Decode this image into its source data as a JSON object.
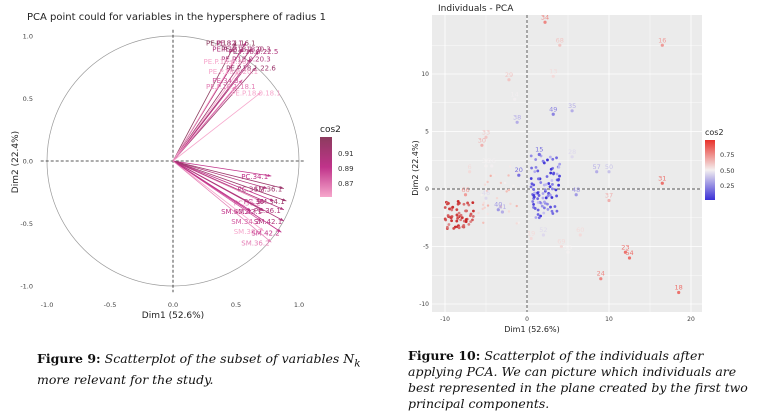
{
  "figures": [
    {
      "title": "PCA point could for variables in the hypersphere of radius 1",
      "caption_label": "Figure 9:",
      "caption_text": "Scatterplot of the subset of variables N",
      "caption_sub": "k",
      "caption_rest": " more relevant for the study."
    },
    {
      "title": "Individuals - PCA",
      "caption_label": "Figure 10:",
      "caption_text": "Scatterplot of the individuals after applying PCA. We can picture which individuals are best represented in the plane created by the first two principal components."
    }
  ],
  "colors": {
    "cos2_high": "#8c3b5e",
    "cos2_mid": "#c0338a",
    "cos2_low": "#f6a7cc",
    "ind_high": "#e8312a",
    "ind_low": "#3a2fd6",
    "ind_mid": "#f2f2f2"
  },
  "chart_data": [
    {
      "type": "scatter",
      "title": "PCA point could for variables in the hypersphere of radius 1",
      "xlabel": "Dim1 (52.6%)",
      "ylabel": "Dim2 (22.4%)",
      "xlim": [
        -1.0,
        1.0
      ],
      "ylim": [
        -1.0,
        1.0
      ],
      "xticks": [
        "-1.0",
        "-0.5",
        "0.0",
        "0.5",
        "1.0"
      ],
      "yticks": [
        "-1.0",
        "-0.5",
        "0.0",
        "0.5",
        "1.0"
      ],
      "legend": {
        "title": "cos2",
        "labels": [
          "0.91",
          "0.89",
          "0.87"
        ],
        "placement": "right"
      },
      "grid": false,
      "points": [
        {
          "label": "PE.P.18.1.16.1",
          "x": 0.5,
          "y": 0.95,
          "cos2": 0.92
        },
        {
          "label": "PE.32.1",
          "x": 0.58,
          "y": 0.95,
          "cos2": 0.9
        },
        {
          "label": "PE.P.18.1.18.0",
          "x": 0.55,
          "y": 0.9,
          "cos2": 0.9
        },
        {
          "label": "PE.P.18.1.20.3",
          "x": 0.62,
          "y": 0.9,
          "cos2": 0.91
        },
        {
          "label": "PE.P.18.0.22.5",
          "x": 0.68,
          "y": 0.88,
          "cos2": 0.9
        },
        {
          "label": "PE.P.18.0.20.3",
          "x": 0.62,
          "y": 0.82,
          "cos2": 0.9
        },
        {
          "label": "PE.P.16.0.20",
          "x": 0.48,
          "y": 0.8,
          "cos2": 0.86
        },
        {
          "label": "PE.P.18.1.22.6",
          "x": 0.66,
          "y": 0.75,
          "cos2": 0.91
        },
        {
          "label": "PE.P.18.0.20.1",
          "x": 0.52,
          "y": 0.72,
          "cos2": 0.86
        },
        {
          "label": "PE.34.3",
          "x": 0.55,
          "y": 0.65,
          "cos2": 0.88
        },
        {
          "label": "PE.P.18.1.18.1",
          "x": 0.5,
          "y": 0.6,
          "cos2": 0.87
        },
        {
          "label": "PE.P.18.0.18.1",
          "x": 0.7,
          "y": 0.55,
          "cos2": 0.86
        },
        {
          "label": "PC.34.1",
          "x": 0.78,
          "y": -0.12,
          "cos2": 0.89
        },
        {
          "label": "PC.34.2",
          "x": 0.75,
          "y": -0.22,
          "cos2": 0.9
        },
        {
          "label": "SM.36.1",
          "x": 0.88,
          "y": -0.22,
          "cos2": 0.91
        },
        {
          "label": "PC.36.2",
          "x": 0.72,
          "y": -0.33,
          "cos2": 0.87
        },
        {
          "label": "PC.30",
          "x": 0.8,
          "y": -0.32,
          "cos2": 0.89
        },
        {
          "label": "SM.34.1",
          "x": 0.9,
          "y": -0.32,
          "cos2": 0.91
        },
        {
          "label": "SM.40.2",
          "x": 0.62,
          "y": -0.4,
          "cos2": 0.89
        },
        {
          "label": "SM.42.1",
          "x": 0.72,
          "y": -0.4,
          "cos2": 0.9
        },
        {
          "label": "PC.36.1",
          "x": 0.88,
          "y": -0.39,
          "cos2": 0.9
        },
        {
          "label": "SM.34.2",
          "x": 0.7,
          "y": -0.48,
          "cos2": 0.88
        },
        {
          "label": "SM.42.1",
          "x": 0.88,
          "y": -0.48,
          "cos2": 0.9
        },
        {
          "label": "SM.38.2",
          "x": 0.72,
          "y": -0.56,
          "cos2": 0.86
        },
        {
          "label": "SM.42.2",
          "x": 0.86,
          "y": -0.57,
          "cos2": 0.89
        },
        {
          "label": "SM.36.2",
          "x": 0.78,
          "y": -0.65,
          "cos2": 0.87
        }
      ]
    },
    {
      "type": "scatter",
      "title": "Individuals - PCA",
      "xlabel": "Dim1 (52.6%)",
      "ylabel": "Dim2 (22.4%)",
      "xlim": [
        -10,
        20
      ],
      "ylim": [
        -10,
        10
      ],
      "xticks": [
        "-10",
        "0",
        "10",
        "20"
      ],
      "yticks": [
        "-10",
        "-5",
        "0",
        "5",
        "10"
      ],
      "legend": {
        "title": "cos2",
        "labels": [
          "0.75",
          "0.50",
          "0.25"
        ],
        "placement": "right"
      },
      "grid": true,
      "labeled_points": [
        {
          "label": "34",
          "x": 2.2,
          "y": 14.5,
          "cos2": 0.75
        },
        {
          "label": "68",
          "x": 4.0,
          "y": 12.5,
          "cos2": 0.6
        },
        {
          "label": "16",
          "x": 16.5,
          "y": 12.5,
          "cos2": 0.7
        },
        {
          "label": "13",
          "x": 3.2,
          "y": 9.8,
          "cos2": 0.55
        },
        {
          "label": "29",
          "x": -2.2,
          "y": 9.5,
          "cos2": 0.6
        },
        {
          "label": "14",
          "x": -1.5,
          "y": 7.8,
          "cos2": 0.45
        },
        {
          "label": "49",
          "x": 3.2,
          "y": 6.5,
          "cos2": 0.2
        },
        {
          "label": "35",
          "x": 5.5,
          "y": 6.8,
          "cos2": 0.3
        },
        {
          "label": "38",
          "x": -1.2,
          "y": 5.8,
          "cos2": 0.3
        },
        {
          "label": "33",
          "x": -5.0,
          "y": 4.5,
          "cos2": 0.6
        },
        {
          "label": "30",
          "x": -5.5,
          "y": 3.8,
          "cos2": 0.65
        },
        {
          "label": "15",
          "x": 1.5,
          "y": 3.0,
          "cos2": 0.15
        },
        {
          "label": "28",
          "x": 5.5,
          "y": 2.8,
          "cos2": 0.4
        },
        {
          "label": "36",
          "x": -5.0,
          "y": 2.0,
          "cos2": 0.5
        },
        {
          "label": "26",
          "x": -4.3,
          "y": 2.0,
          "cos2": 0.45
        },
        {
          "label": "6",
          "x": -7.0,
          "y": 1.5,
          "cos2": 0.55
        },
        {
          "label": "20",
          "x": -1.0,
          "y": 1.2,
          "cos2": 0.15
        },
        {
          "label": "57",
          "x": 8.5,
          "y": 1.5,
          "cos2": 0.3
        },
        {
          "label": "50",
          "x": 10.0,
          "y": 1.5,
          "cos2": 0.35
        },
        {
          "label": "31",
          "x": 16.5,
          "y": 0.5,
          "cos2": 0.8
        },
        {
          "label": "37",
          "x": 10.0,
          "y": -1.0,
          "cos2": 0.65
        },
        {
          "label": "66",
          "x": -7.5,
          "y": -0.5,
          "cos2": 0.7
        },
        {
          "label": "46",
          "x": -5.0,
          "y": -0.8,
          "cos2": 0.4
        },
        {
          "label": "41",
          "x": -3.0,
          "y": -2.0,
          "cos2": 0.3
        },
        {
          "label": "48",
          "x": 6.0,
          "y": -0.5,
          "cos2": 0.25
        },
        {
          "label": "40",
          "x": -3.5,
          "y": -1.8,
          "cos2": 0.25
        },
        {
          "label": "19",
          "x": 0.5,
          "y": -4.3,
          "cos2": 0.55
        },
        {
          "label": "52",
          "x": 2.0,
          "y": -4.0,
          "cos2": 0.4
        },
        {
          "label": "60",
          "x": 6.5,
          "y": -4.0,
          "cos2": 0.55
        },
        {
          "label": "69",
          "x": 4.2,
          "y": -5.0,
          "cos2": 0.55
        },
        {
          "label": "55",
          "x": 5.0,
          "y": -5.5,
          "cos2": 0.5
        },
        {
          "label": "23",
          "x": 12.0,
          "y": -5.5,
          "cos2": 0.8
        },
        {
          "label": "54",
          "x": 12.5,
          "y": -6.0,
          "cos2": 0.8
        },
        {
          "label": "24",
          "x": 9.0,
          "y": -7.8,
          "cos2": 0.75
        },
        {
          "label": "18",
          "x": 18.5,
          "y": -9.0,
          "cos2": 0.8
        }
      ]
    }
  ]
}
